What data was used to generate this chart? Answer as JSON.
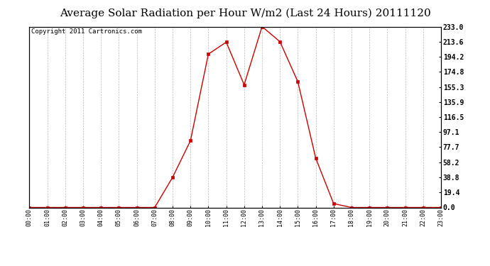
{
  "title": "Average Solar Radiation per Hour W/m2 (Last 24 Hours) 20111120",
  "copyright": "Copyright 2011 Cartronics.com",
  "hours": [
    0,
    1,
    2,
    3,
    4,
    5,
    6,
    7,
    8,
    9,
    10,
    11,
    12,
    13,
    14,
    15,
    16,
    17,
    18,
    19,
    20,
    21,
    22,
    23
  ],
  "values": [
    0,
    0,
    0,
    0,
    0,
    0,
    0,
    0,
    38.8,
    86.0,
    197.6,
    213.0,
    158.0,
    233.0,
    213.6,
    162.0,
    63.5,
    5.0,
    0,
    0,
    0,
    0,
    0,
    0
  ],
  "x_labels": [
    "00:00",
    "01:00",
    "02:00",
    "03:00",
    "04:00",
    "05:00",
    "06:00",
    "07:00",
    "08:00",
    "09:00",
    "10:00",
    "11:00",
    "12:00",
    "13:00",
    "14:00",
    "15:00",
    "16:00",
    "17:00",
    "18:00",
    "19:00",
    "20:00",
    "21:00",
    "22:00",
    "23:00"
  ],
  "y_ticks": [
    0.0,
    19.4,
    38.8,
    58.2,
    77.7,
    97.1,
    116.5,
    135.9,
    155.3,
    174.8,
    194.2,
    213.6,
    233.0
  ],
  "y_max": 233.0,
  "line_color": "#cc0000",
  "marker_color": "#cc0000",
  "bg_color": "#ffffff",
  "grid_color": "#bbbbbb",
  "title_fontsize": 11,
  "copyright_fontsize": 6.5
}
